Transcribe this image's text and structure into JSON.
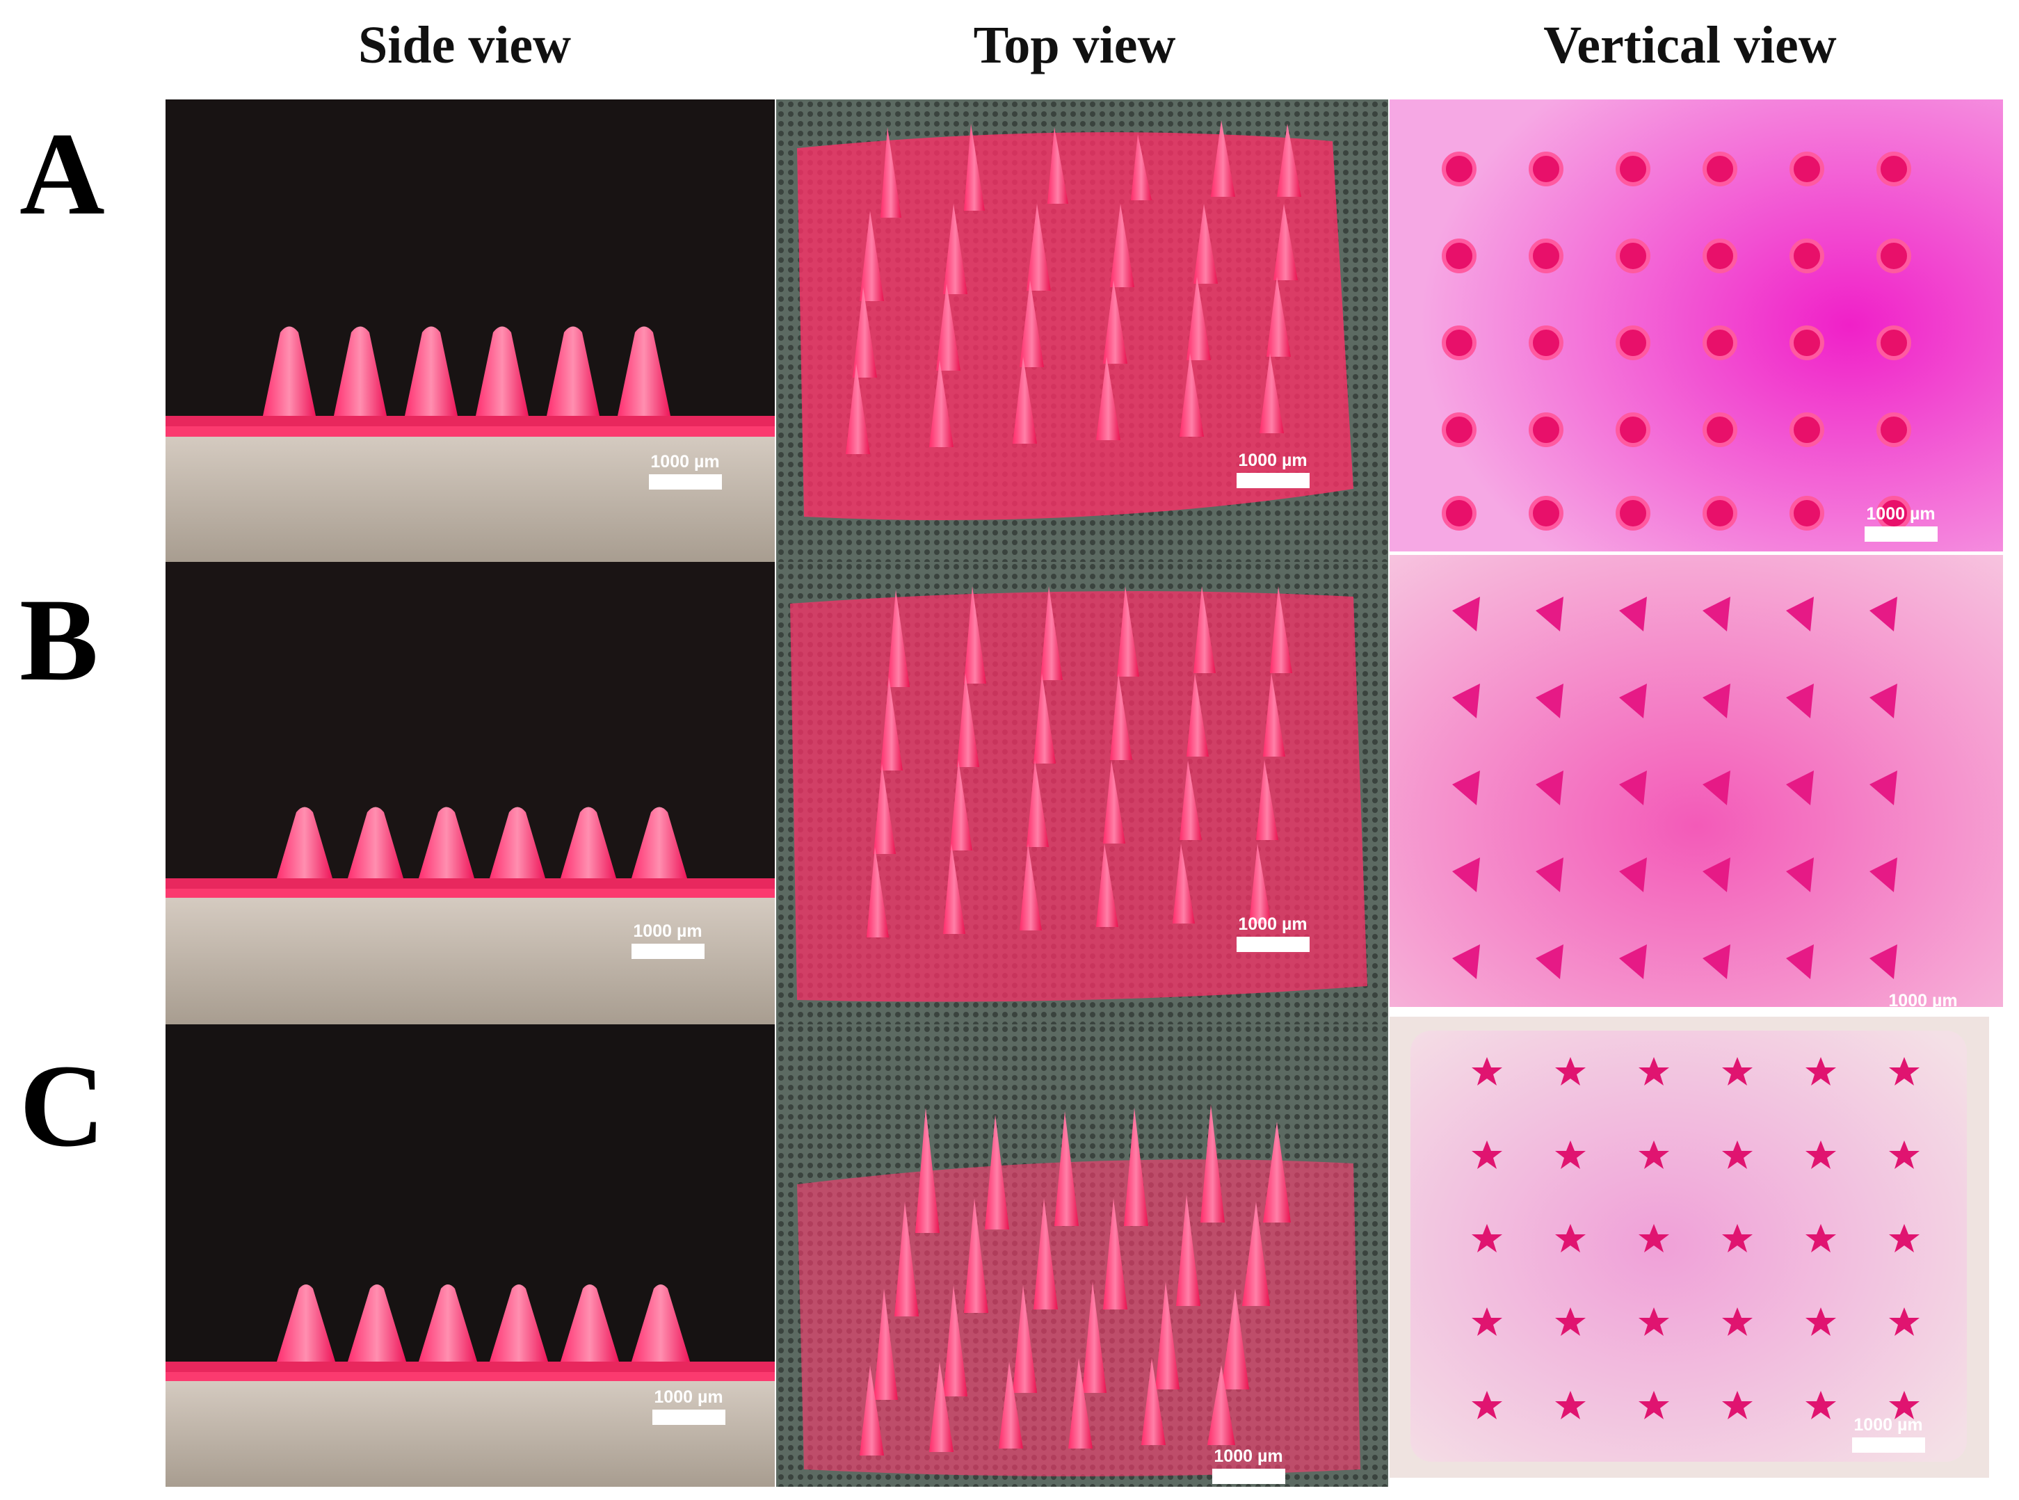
{
  "columns": [
    {
      "title": "Side view"
    },
    {
      "title": "Top view"
    },
    {
      "title": "Vertical view"
    }
  ],
  "rows": [
    {
      "label": "A",
      "needle_tip": "round"
    },
    {
      "label": "B",
      "needle_tip": "triangle"
    },
    {
      "label": "C",
      "needle_tip": "star"
    }
  ],
  "scale_bar_label": "1000 µm",
  "colors": {
    "needle": "#ff1f62",
    "needle_highlight": "#ff7aa3",
    "vertical_tint": "#f028c8",
    "side_background": "#1a1414",
    "platform": "#cbc0b4"
  }
}
